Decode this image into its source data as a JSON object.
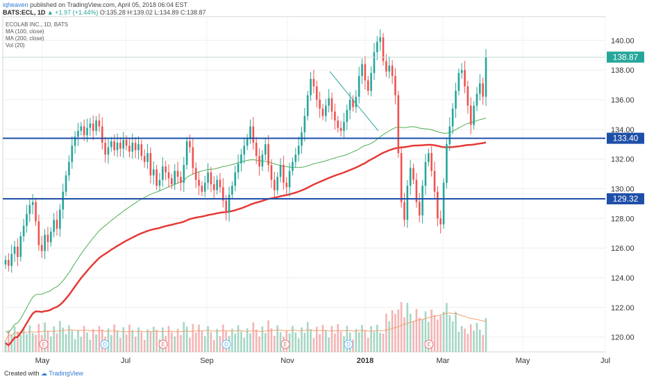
{
  "header": {
    "user": "iqheaven",
    "published": "published on TradingView.com, April 05, 2018 06:04 EST",
    "symbol": "BATS:ECL, 1D",
    "change": "+1.97 (+1.44%)",
    "ohlc": {
      "o": "O:135.28",
      "h": "H:139.02",
      "l": "L:134.89",
      "c": "C:138.87"
    }
  },
  "legend": {
    "title": "ECOLAB INC., 1D, BATS",
    "ma100": "MA (100, close)",
    "ma200": "MA (200, close)",
    "vol": "Vol (20)"
  },
  "footer": {
    "created": "Created with",
    "brand": "TradingView"
  },
  "colors": {
    "up": "#26a69a",
    "down": "#ef5350",
    "ma100": "#4caf50",
    "ma200": "#e53935",
    "hline": "#1e4fa8",
    "price_tag": "#26a69a",
    "vol_up": "#a5d6c4",
    "vol_down": "#f4b4b4"
  },
  "chart_data": {
    "type": "candlestick",
    "y_ticks": [
      "140.00",
      "138.00",
      "136.00",
      "134.00",
      "132.00",
      "130.00",
      "128.00",
      "126.00",
      "124.00",
      "122.00",
      "120.00"
    ],
    "ylim": [
      119.0,
      141.6
    ],
    "x_ticks": [
      "May",
      "Jul",
      "Sep",
      "Nov",
      "2018",
      "Mar",
      "May",
      "Jul"
    ],
    "last_price": "138.87",
    "horizontal_lines": [
      {
        "value": 133.4,
        "label": "133.40"
      },
      {
        "value": 129.32,
        "label": "129.32"
      }
    ],
    "trendline": {
      "from": 137.9,
      "to": 133.9
    },
    "event_markers": [
      "E",
      "D",
      "E",
      "D",
      "E",
      "D",
      "E"
    ],
    "candles_approx": [
      125.2,
      124.8,
      125.6,
      126.1,
      125.4,
      126.8,
      127.5,
      128.3,
      128.9,
      129.1,
      127.8,
      126.2,
      125.8,
      126.9,
      126.4,
      127.1,
      127.9,
      127.3,
      128.6,
      129.8,
      130.9,
      131.8,
      132.9,
      133.5,
      133.9,
      134.2,
      133.6,
      134.1,
      134.4,
      133.9,
      134.6,
      134.2,
      133.1,
      132.3,
      132.8,
      133.2,
      132.6,
      133.1,
      132.7,
      133.3,
      132.9,
      132.5,
      133.1,
      132.6,
      133.0,
      132.2,
      131.8,
      132.4,
      130.9,
      131.3,
      130.2,
      130.6,
      131.5,
      131.1,
      130.7,
      130.3,
      131.2,
      130.8,
      130.4,
      131.6,
      133.2,
      132.8,
      131.4,
      130.6,
      130.2,
      129.8,
      130.4,
      131.1,
      130.3,
      129.9,
      130.6,
      130.1,
      129.2,
      128.4,
      129.6,
      130.2,
      131.1,
      131.7,
      132.3,
      132.9,
      133.4,
      134.2,
      133.1,
      132.2,
      131.5,
      132.3,
      133.0,
      131.6,
      130.6,
      129.9,
      130.8,
      131.6,
      130.4,
      130.1,
      131.2,
      131.8,
      132.3,
      132.9,
      133.8,
      134.9,
      136.3,
      137.4,
      136.9,
      136.0,
      135.4,
      134.9,
      135.6,
      136.1,
      135.2,
      134.6,
      134.1,
      133.9,
      134.5,
      135.3,
      136.0,
      135.5,
      136.2,
      137.6,
      138.4,
      137.3,
      136.6,
      137.8,
      139.2,
      139.9,
      140.2,
      138.6,
      137.9,
      138.3,
      137.6,
      136.3,
      132.4,
      129.1,
      127.9,
      130.2,
      131.4,
      130.6,
      129.1,
      128.2,
      130.2,
      131.8,
      132.4,
      131.2,
      129.8,
      128.0,
      127.6,
      130.4,
      133.0,
      134.2,
      135.4,
      136.6,
      137.8,
      138.0,
      136.9,
      135.6,
      134.3,
      135.6,
      136.4,
      137.1,
      136.2,
      138.87
    ]
  }
}
